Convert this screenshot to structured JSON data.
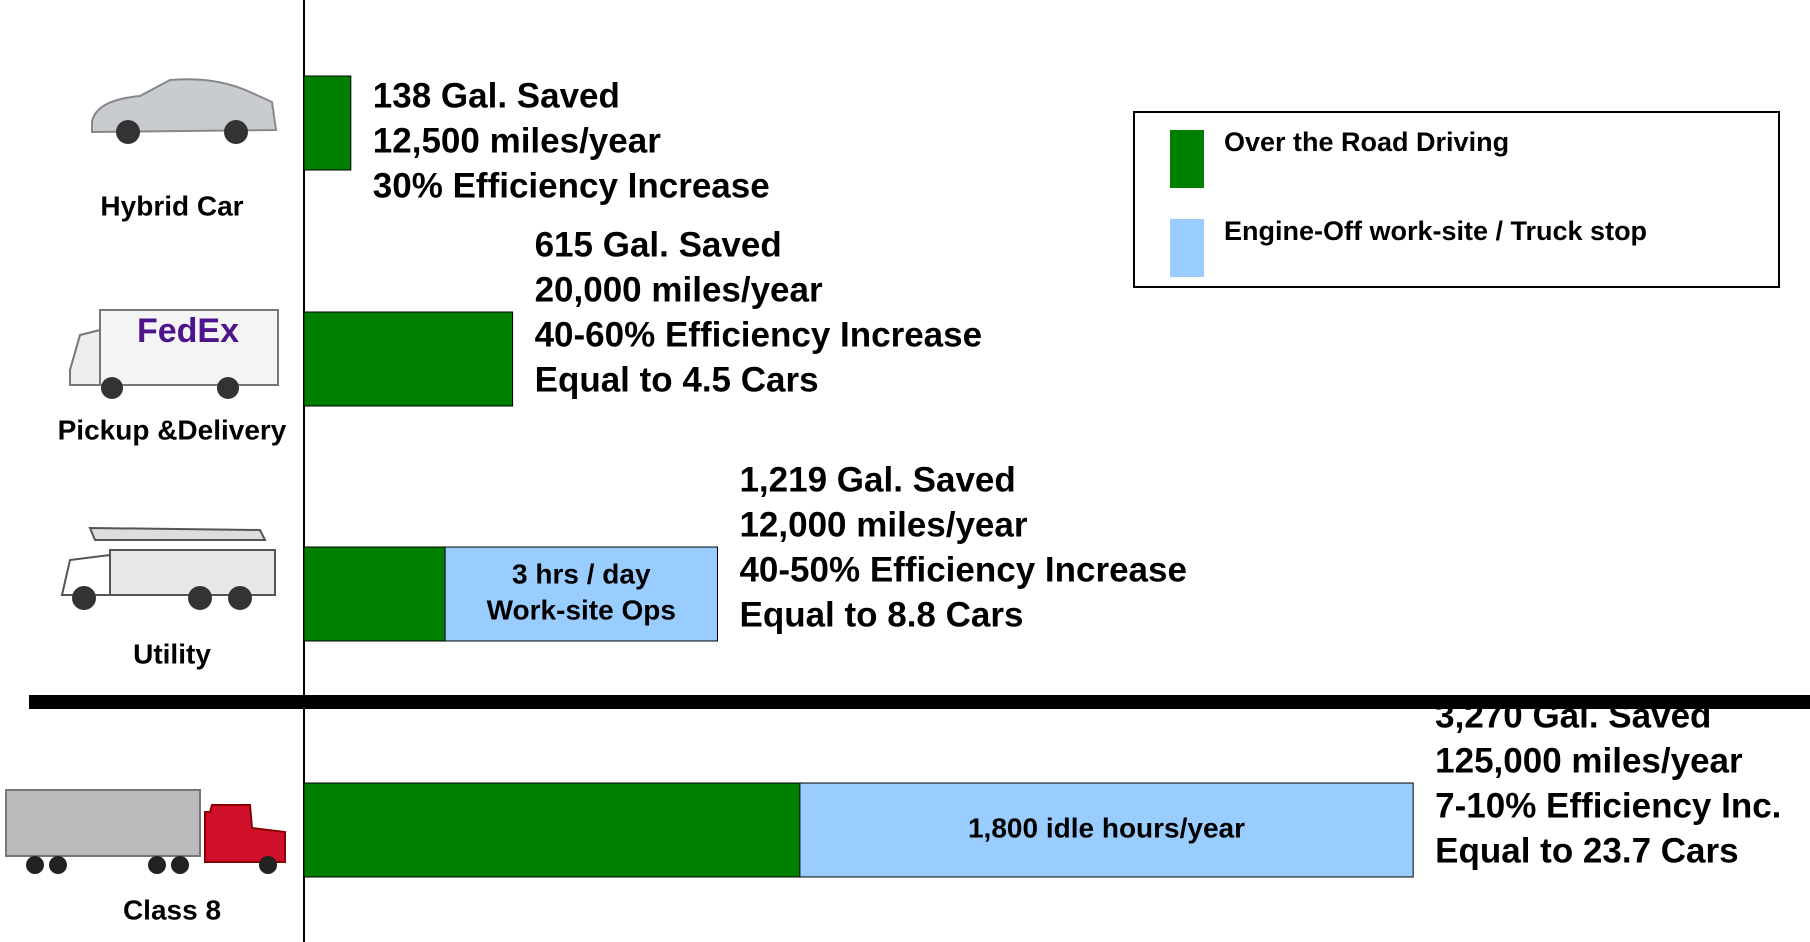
{
  "chart_data": {
    "type": "stacked-bar-horizontal",
    "categories": [
      "Hybrid Car",
      "Pickup &Delivery",
      "Utility",
      "Class 8"
    ],
    "series": [
      {
        "name": "Over the Road Driving",
        "color": "#008000",
        "values": [
          138,
          615,
          416,
          1462
        ]
      },
      {
        "name": "Engine-Off work-site / Truck stop",
        "color": "#99ccff",
        "values": [
          null,
          null,
          803,
          1808
        ],
        "segment_labels": [
          null,
          null,
          [
            "3 hrs / day",
            "Work-site Ops"
          ],
          [
            "1,800 idle hours/year"
          ]
        ]
      }
    ],
    "annotations": [
      [
        "138 Gal. Saved",
        "12,500 miles/year",
        "30% Efficiency Increase"
      ],
      [
        "615 Gal. Saved",
        "20,000 miles/year",
        "40-60% Efficiency Increase",
        "Equal to 4.5 Cars"
      ],
      [
        "1,219 Gal. Saved",
        "12,000 miles/year",
        "40-50% Efficiency Increase",
        "Equal to 8.8 Cars"
      ],
      [
        "3,270 Gal. Saved",
        "125,000 miles/year",
        "7-10% Efficiency Inc.",
        "Equal to 23.7 Cars"
      ]
    ],
    "xlim": [
      0,
      4440
    ],
    "legend": "top-right"
  }
}
